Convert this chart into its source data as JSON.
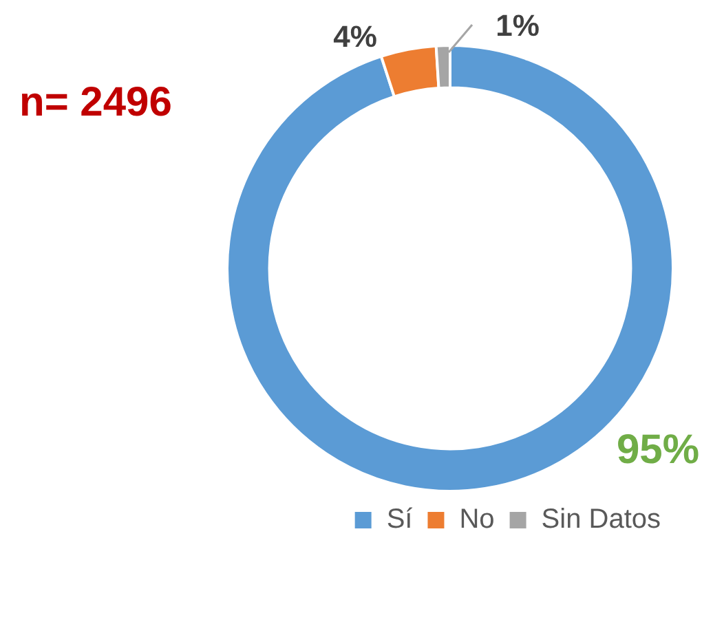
{
  "chart_data": {
    "type": "donut",
    "categories": [
      "Sí",
      "No",
      "Sin Datos"
    ],
    "values": [
      95,
      4,
      1
    ],
    "colors": [
      "#5b9bd5",
      "#ed7d31",
      "#a5a5a5"
    ],
    "value_labels": [
      "95%",
      "4%",
      "1%"
    ],
    "annotations": [
      "n= 2496"
    ],
    "legend": "bottom right"
  }
}
